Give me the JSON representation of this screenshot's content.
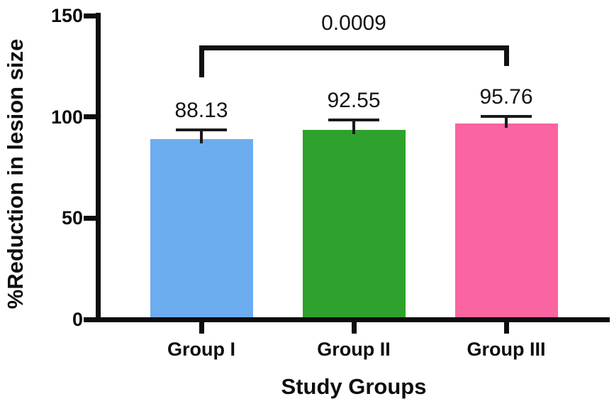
{
  "chart_data": {
    "type": "bar",
    "title": "",
    "xlabel": "Study Groups",
    "ylabel": "%Reduction in lesion size",
    "categories": [
      "Group I",
      "Group II",
      "Group III"
    ],
    "values": [
      88.13,
      92.55,
      95.76
    ],
    "value_labels": [
      "88.13",
      "92.55",
      "95.76"
    ],
    "errors_upper": [
      4.6,
      4.9,
      3.7
    ],
    "bar_colors": [
      "#6CADEF",
      "#2EA22C",
      "#FA64A0"
    ],
    "ylim": [
      0,
      150
    ],
    "yticks": [
      0,
      50,
      100,
      150
    ],
    "grid": false,
    "legend": null,
    "significance": {
      "label": "0.0009",
      "from": "Group I",
      "to": "Group III",
      "from_index": 0,
      "to_index": 2
    }
  },
  "colors": {
    "axis": "#0d0d0d",
    "error_bar": "#1a1a1a",
    "bracket": "#111111",
    "background": "#ffffff"
  }
}
